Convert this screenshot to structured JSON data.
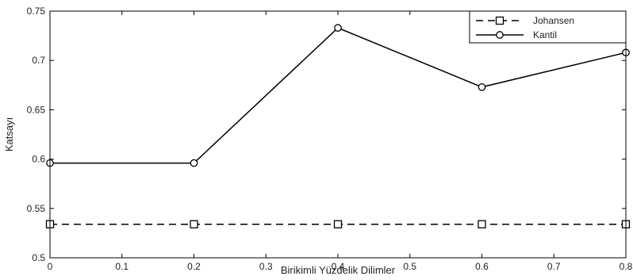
{
  "chart_data": {
    "type": "line",
    "title": "",
    "xlabel": "Birikimli Yüzdelik Dilimler",
    "ylabel": "Katsayı",
    "xlim": [
      0,
      0.8
    ],
    "ylim": [
      0.5,
      0.75
    ],
    "x_ticks": [
      "0",
      "0.1",
      "0.2",
      "0.3",
      "0.4",
      "0.5",
      "0.6",
      "0.7",
      "0.8"
    ],
    "y_ticks": [
      "0.5",
      "0.55",
      "0.6",
      "0.65",
      "0.7",
      "0.75"
    ],
    "grid": false,
    "legend_position": "top-right",
    "series": [
      {
        "name": "Johansen",
        "line_style": "dashed",
        "marker": "square",
        "color": "#000000",
        "x": [
          0,
          0.2,
          0.4,
          0.6,
          0.8
        ],
        "y": [
          0.534,
          0.534,
          0.534,
          0.534,
          0.534
        ]
      },
      {
        "name": "Kantil",
        "line_style": "solid",
        "marker": "circle",
        "color": "#000000",
        "x": [
          0,
          0.2,
          0.4,
          0.6,
          0.8
        ],
        "y": [
          0.596,
          0.596,
          0.733,
          0.673,
          0.708
        ]
      }
    ]
  }
}
